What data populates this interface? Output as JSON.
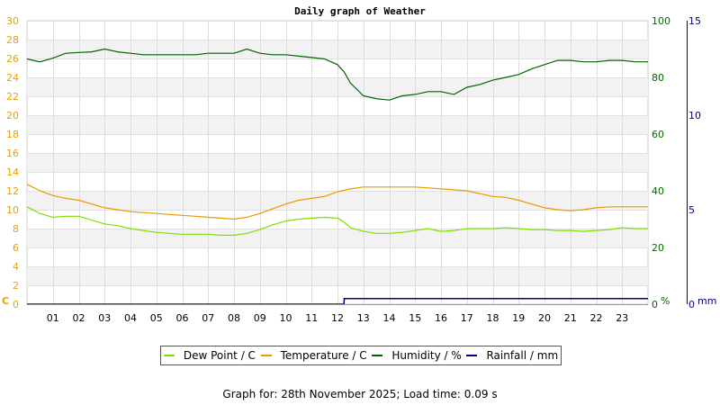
{
  "chart_data": {
    "type": "line",
    "title": "Daily graph of Weather",
    "x_tick_labels": [
      "01",
      "02",
      "03",
      "04",
      "05",
      "06",
      "07",
      "08",
      "09",
      "10",
      "11",
      "12",
      "13",
      "14",
      "15",
      "16",
      "17",
      "18",
      "19",
      "20",
      "21",
      "22",
      "23"
    ],
    "x_range_hours": [
      0,
      24
    ],
    "grid": true,
    "legend_position": "bottom",
    "axes": {
      "left": {
        "label": "C",
        "range": [
          0,
          30
        ],
        "ticks": [
          0,
          2,
          4,
          6,
          8,
          10,
          12,
          14,
          16,
          18,
          20,
          22,
          24,
          26,
          28,
          30
        ],
        "color": "#e8a000"
      },
      "right_humidity": {
        "label": "%",
        "range": [
          0,
          100
        ],
        "ticks": [
          0,
          20,
          40,
          60,
          80,
          100
        ],
        "color": "#006600"
      },
      "right_rainfall": {
        "label": "mm",
        "range": [
          0,
          15
        ],
        "ticks": [
          0,
          5,
          10,
          15
        ],
        "color": "#00008b"
      }
    },
    "series": [
      {
        "name": "Dew Point / C",
        "axis": "left",
        "color": "#7ee000",
        "x": [
          0,
          0.5,
          1,
          1.5,
          2,
          2.5,
          3,
          3.5,
          4,
          4.5,
          5,
          5.5,
          6,
          6.5,
          7,
          7.5,
          8,
          8.5,
          9,
          9.5,
          10,
          10.5,
          11,
          11.5,
          12,
          12.25,
          12.5,
          13,
          13.5,
          14,
          14.5,
          15,
          15.5,
          16,
          16.5,
          17,
          17.5,
          18,
          18.5,
          19,
          19.5,
          20,
          20.5,
          21,
          21.5,
          22,
          22.5,
          23,
          23.5,
          24
        ],
        "values": [
          10.3,
          9.6,
          9.2,
          9.3,
          9.3,
          8.9,
          8.5,
          8.3,
          8.0,
          7.8,
          7.6,
          7.5,
          7.4,
          7.4,
          7.4,
          7.3,
          7.3,
          7.5,
          7.9,
          8.4,
          8.8,
          9.0,
          9.1,
          9.2,
          9.1,
          8.7,
          8.1,
          7.7,
          7.5,
          7.5,
          7.6,
          7.8,
          8.0,
          7.7,
          7.8,
          8.0,
          8.0,
          8.0,
          8.1,
          8.0,
          7.9,
          7.9,
          7.8,
          7.8,
          7.7,
          7.8,
          7.9,
          8.1,
          8.0,
          8.0
        ]
      },
      {
        "name": "Temperature / C",
        "axis": "left",
        "color": "#e89a00",
        "x": [
          0,
          0.5,
          1,
          1.5,
          2,
          2.5,
          3,
          3.5,
          4,
          4.5,
          5,
          5.5,
          6,
          6.5,
          7,
          7.5,
          8,
          8.5,
          9,
          9.5,
          10,
          10.5,
          11,
          11.5,
          12,
          12.5,
          13,
          13.5,
          14,
          14.5,
          15,
          15.5,
          16,
          16.5,
          17,
          17.5,
          18,
          18.5,
          19,
          19.5,
          20,
          20.5,
          21,
          21.5,
          22,
          22.5,
          23,
          23.5,
          24
        ],
        "values": [
          12.7,
          12.0,
          11.5,
          11.2,
          11.0,
          10.6,
          10.2,
          10.0,
          9.8,
          9.7,
          9.6,
          9.5,
          9.4,
          9.3,
          9.2,
          9.1,
          9.0,
          9.2,
          9.6,
          10.1,
          10.6,
          11.0,
          11.2,
          11.4,
          11.9,
          12.2,
          12.4,
          12.4,
          12.4,
          12.4,
          12.4,
          12.3,
          12.2,
          12.1,
          12.0,
          11.7,
          11.4,
          11.3,
          11.0,
          10.6,
          10.2,
          10.0,
          9.9,
          10.0,
          10.2,
          10.3,
          10.3,
          10.3,
          10.3
        ]
      },
      {
        "name": "Humidity / %",
        "axis": "right_humidity",
        "color": "#006400",
        "x": [
          0,
          0.5,
          1,
          1.5,
          2,
          2.5,
          3,
          3.5,
          4,
          4.5,
          5,
          5.5,
          6,
          6.5,
          7,
          7.5,
          8,
          8.5,
          9,
          9.5,
          10,
          10.5,
          11,
          11.5,
          12,
          12.25,
          12.5,
          13,
          13.5,
          14,
          14.5,
          15,
          15.5,
          16,
          16.5,
          17,
          17.5,
          18,
          18.5,
          19,
          19.5,
          20,
          20.5,
          21,
          21.5,
          22,
          22.5,
          23,
          23.5,
          24
        ],
        "values": [
          86.5,
          85.5,
          86.8,
          88.5,
          88.8,
          89.0,
          90.0,
          89.0,
          88.5,
          88.0,
          88.0,
          88.0,
          88.0,
          88.0,
          88.5,
          88.5,
          88.5,
          90.0,
          88.5,
          88.0,
          88.0,
          87.5,
          87.0,
          86.5,
          84.5,
          82.0,
          78.0,
          73.5,
          72.5,
          72.0,
          73.5,
          74.0,
          75.0,
          75.0,
          74.0,
          76.5,
          77.5,
          79.0,
          80.0,
          81.0,
          83.0,
          84.5,
          86.0,
          86.0,
          85.5,
          85.5,
          86.0,
          86.0,
          85.5,
          85.5
        ]
      },
      {
        "name": "Rainfall / mm",
        "axis": "right_rainfall",
        "color": "#00008b",
        "x": [
          0,
          12.25,
          12.26,
          24
        ],
        "values": [
          0,
          0,
          0.3,
          0.3
        ]
      }
    ]
  },
  "footer": "Graph for: 28th November 2025; Load time: 0.09 s"
}
